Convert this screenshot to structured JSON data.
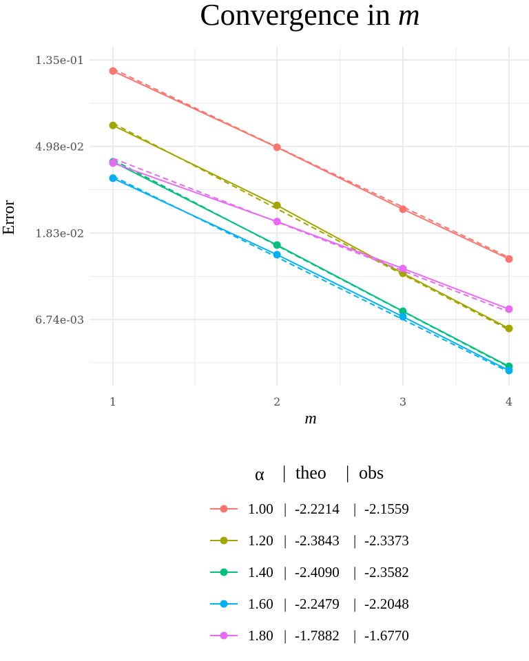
{
  "chart_data": {
    "type": "line",
    "title": "Convergence in ",
    "title_italic": "m",
    "xlabel": "m",
    "ylabel": "Error",
    "x_scale": "sqrt",
    "y_scale": "log",
    "x": [
      1,
      2,
      3,
      4
    ],
    "x_tick_labels": [
      "1",
      "2",
      "3",
      "4"
    ],
    "xlim": [
      1,
      4
    ],
    "y_ticks": [
      0.1353,
      0.0498,
      0.0183,
      0.00674
    ],
    "y_tick_labels": [
      "1.35e-01",
      "4.98e-02",
      "1.83e-02",
      "6.74e-03"
    ],
    "ylim": [
      0.0032,
      0.16
    ],
    "grid": true,
    "legend_position": "bottom",
    "legend_title": {
      "alpha": "α",
      "theo": "theo",
      "obs": "obs",
      "sep": "|"
    },
    "series": [
      {
        "alpha": "1.00",
        "theo": "-2.2214",
        "obs": "-2.1559",
        "color": "#F8766D",
        "values": [
          0.119,
          0.0493,
          0.0241,
          0.01357
        ],
        "theoretical_line": [
          0.122,
          0.0138
        ]
      },
      {
        "alpha": "1.20",
        "theo": "-2.3843",
        "obs": "-2.3373",
        "color": "#A3A500",
        "values": [
          0.0635,
          0.0252,
          0.01149,
          0.00608
        ],
        "theoretical_line": [
          0.0651,
          0.00598
        ]
      },
      {
        "alpha": "1.40",
        "theo": "-2.4090",
        "obs": "-2.3582",
        "color": "#00BF7D",
        "values": [
          0.0417,
          0.01594,
          0.00742,
          0.00392
        ],
        "theoretical_line": [
          0.0427,
          0.00389
        ]
      },
      {
        "alpha": "1.60",
        "theo": "-2.2479",
        "obs": "-2.2048",
        "color": "#00B0F6",
        "values": [
          0.0345,
          0.01426,
          0.00697,
          0.00374
        ],
        "theoretical_line": [
          0.0353,
          0.00368
        ]
      },
      {
        "alpha": "1.80",
        "theo": "-1.7882",
        "obs": "-1.6770",
        "color": "#E76BF3",
        "values": [
          0.0411,
          0.0209,
          0.01215,
          0.0076
        ],
        "theoretical_line": [
          0.0434,
          0.00736
        ]
      }
    ]
  }
}
